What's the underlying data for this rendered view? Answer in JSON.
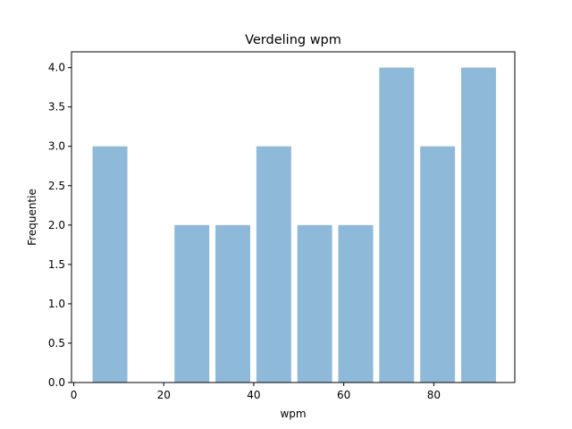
{
  "chart_data": {
    "type": "bar",
    "title": "Verdeling wpm",
    "xlabel": "wpm",
    "ylabel": "Frequentie",
    "xlim": [
      -0.5,
      98
    ],
    "ylim": [
      0,
      4.2
    ],
    "xticks": [
      0,
      20,
      40,
      60,
      80
    ],
    "yticks": [
      0.0,
      0.5,
      1.0,
      1.5,
      2.0,
      2.5,
      3.0,
      3.5,
      4.0
    ],
    "bin_edges": [
      3.5,
      12.6,
      21.7,
      30.8,
      39.9,
      49.0,
      58.1,
      67.2,
      76.3,
      85.4,
      94.5
    ],
    "values": [
      3,
      0,
      2,
      2,
      3,
      2,
      2,
      4,
      3,
      4
    ],
    "rwidth": 0.85,
    "bar_color": "#8fb9d9",
    "grid": false,
    "legend": "none"
  }
}
